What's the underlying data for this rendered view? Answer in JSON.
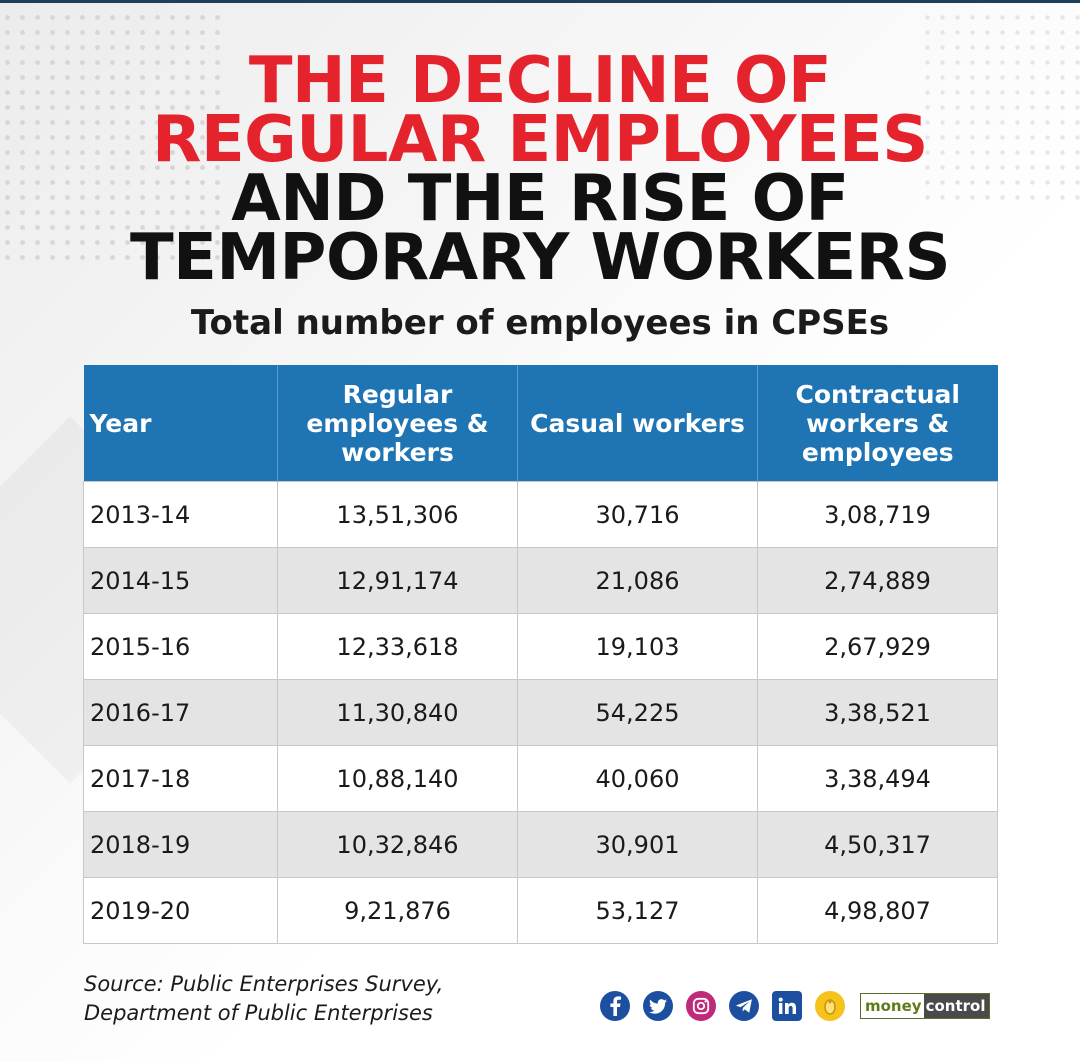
{
  "title_line1": "THE DECLINE OF",
  "title_line2": "REGULAR EMPLOYEES",
  "title_line3": "AND THE RISE OF",
  "title_line4": "TEMPORARY WORKERS",
  "subtitle": "Total number of employees in CPSEs",
  "colors": {
    "accent_red": "#e4232c",
    "header_blue": "#1f75b3",
    "row_alt_gray": "#e4e4e4"
  },
  "chart_data": {
    "type": "table",
    "columns": [
      "Year",
      "Regular employees & workers",
      "Casual workers",
      "Contractual workers & employees"
    ],
    "rows": [
      [
        "2013-14",
        "13,51,306",
        "30,716",
        "3,08,719"
      ],
      [
        "2014-15",
        "12,91,174",
        "21,086",
        "2,74,889"
      ],
      [
        "2015-16",
        "12,33,618",
        "19,103",
        "2,67,929"
      ],
      [
        "2016-17",
        "11,30,840",
        "54,225",
        "3,38,521"
      ],
      [
        "2017-18",
        "10,88,140",
        "40,060",
        "3,38,494"
      ],
      [
        "2018-19",
        "10,32,846",
        "30,901",
        "4,50,317"
      ],
      [
        "2019-20",
        "9,21,876",
        "53,127",
        "4,98,807"
      ]
    ]
  },
  "source_line1": "Source: Public Enterprises Survey,",
  "source_line2": "Department of Public Enterprises",
  "social_icons": [
    "facebook-icon",
    "twitter-icon",
    "instagram-icon",
    "telegram-icon",
    "linkedin-icon",
    "koo-icon"
  ],
  "brand": {
    "part1": "money",
    "part2": "control"
  }
}
